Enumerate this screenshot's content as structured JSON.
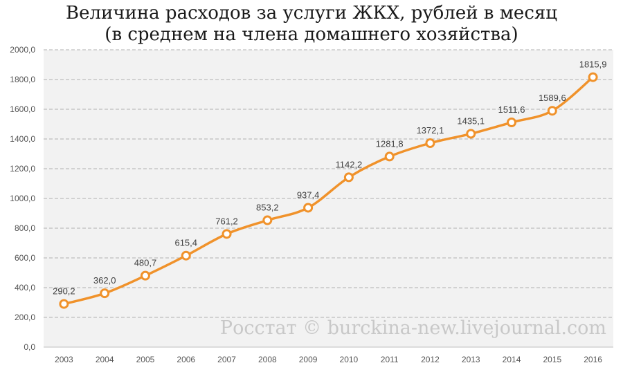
{
  "chart_data": {
    "type": "line",
    "title": "Величина расходов за услуги ЖКХ, рублей в месяц",
    "subtitle": "(в среднем на члена домашнего хозяйства)",
    "categories": [
      "2003",
      "2004",
      "2005",
      "2006",
      "2007",
      "2008",
      "2009",
      "2010",
      "2011",
      "2012",
      "2013",
      "2014",
      "2015",
      "2016"
    ],
    "series": [
      {
        "values": [
          290.2,
          362.0,
          480.7,
          615.4,
          761.2,
          853.2,
          937.4,
          1142.2,
          1281.8,
          1372.1,
          1435.1,
          1511.6,
          1589.6,
          1815.9
        ],
        "labels": [
          "290,2",
          "362,0",
          "480,7",
          "615,4",
          "761,2",
          "853,2",
          "937,4",
          "1142,2",
          "1281,8",
          "1372,1",
          "1435,1",
          "1511,6",
          "1589,6",
          "1815,9"
        ]
      }
    ],
    "ylim": [
      0,
      2000
    ],
    "yticks": [
      "0,0",
      "200,0",
      "400,0",
      "600,0",
      "800,0",
      "1000,0",
      "1200,0",
      "1400,0",
      "1600,0",
      "1800,0",
      "2000,0"
    ],
    "grid": true,
    "line_color": "#F0922B",
    "xlabel": "",
    "ylabel": ""
  },
  "watermark": "Росстат © burckina-new.livejournal.com"
}
